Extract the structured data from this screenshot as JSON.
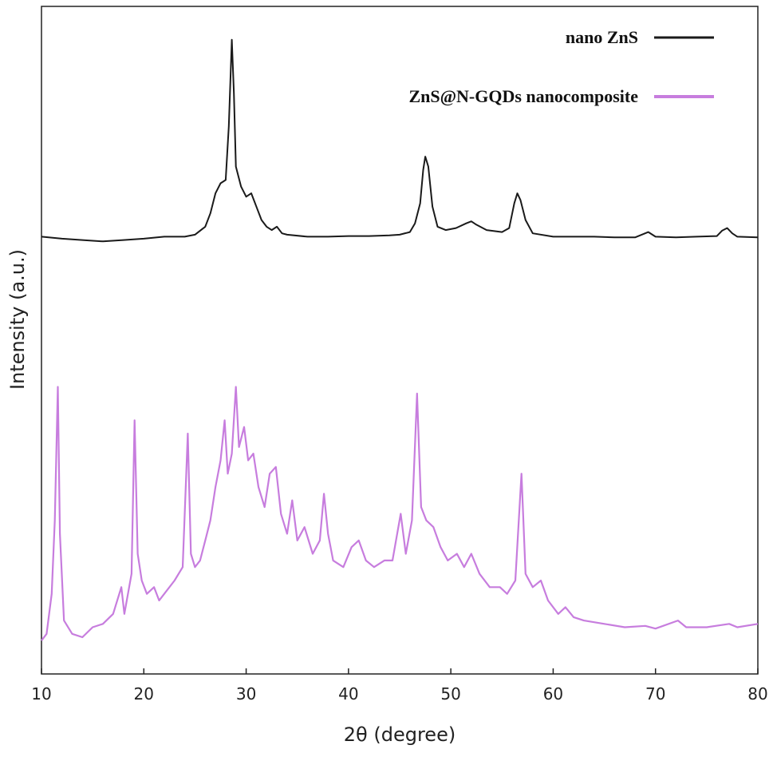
{
  "chart_data": {
    "type": "line",
    "title": "",
    "xlabel": "2θ (degree)",
    "ylabel": "Intensity (a.u.)",
    "xlim": [
      10,
      80
    ],
    "xticks": [
      10,
      20,
      30,
      40,
      50,
      60,
      70,
      80
    ],
    "grid": false,
    "legend_position": "top-right",
    "series": [
      {
        "name": "nano ZnS",
        "color": "#1a1a1a",
        "points": [
          [
            10,
            0.655
          ],
          [
            12,
            0.652
          ],
          [
            14,
            0.65
          ],
          [
            16,
            0.648
          ],
          [
            18,
            0.65
          ],
          [
            20,
            0.652
          ],
          [
            22,
            0.655
          ],
          [
            24,
            0.655
          ],
          [
            25,
            0.658
          ],
          [
            26,
            0.67
          ],
          [
            26.5,
            0.69
          ],
          [
            27,
            0.72
          ],
          [
            27.5,
            0.735
          ],
          [
            28,
            0.74
          ],
          [
            28.3,
            0.82
          ],
          [
            28.6,
            0.95
          ],
          [
            28.8,
            0.87
          ],
          [
            29.0,
            0.76
          ],
          [
            29.5,
            0.73
          ],
          [
            30,
            0.715
          ],
          [
            30.5,
            0.72
          ],
          [
            31,
            0.7
          ],
          [
            31.5,
            0.68
          ],
          [
            32,
            0.67
          ],
          [
            32.5,
            0.665
          ],
          [
            33,
            0.67
          ],
          [
            33.5,
            0.66
          ],
          [
            34,
            0.658
          ],
          [
            36,
            0.655
          ],
          [
            38,
            0.655
          ],
          [
            40,
            0.656
          ],
          [
            42,
            0.656
          ],
          [
            44,
            0.657
          ],
          [
            45,
            0.658
          ],
          [
            46,
            0.662
          ],
          [
            46.5,
            0.675
          ],
          [
            47,
            0.705
          ],
          [
            47.3,
            0.755
          ],
          [
            47.5,
            0.775
          ],
          [
            47.8,
            0.76
          ],
          [
            48.2,
            0.7
          ],
          [
            48.7,
            0.67
          ],
          [
            49.5,
            0.665
          ],
          [
            50.5,
            0.668
          ],
          [
            51.5,
            0.675
          ],
          [
            52,
            0.678
          ],
          [
            52.5,
            0.673
          ],
          [
            53.5,
            0.665
          ],
          [
            55,
            0.662
          ],
          [
            55.7,
            0.668
          ],
          [
            56.2,
            0.705
          ],
          [
            56.5,
            0.72
          ],
          [
            56.8,
            0.71
          ],
          [
            57.3,
            0.68
          ],
          [
            58,
            0.66
          ],
          [
            60,
            0.655
          ],
          [
            62,
            0.655
          ],
          [
            64,
            0.655
          ],
          [
            66,
            0.654
          ],
          [
            68,
            0.654
          ],
          [
            69.3,
            0.662
          ],
          [
            70,
            0.655
          ],
          [
            72,
            0.654
          ],
          [
            74,
            0.655
          ],
          [
            76,
            0.656
          ],
          [
            76.5,
            0.664
          ],
          [
            77,
            0.668
          ],
          [
            77.5,
            0.66
          ],
          [
            78,
            0.655
          ],
          [
            80,
            0.654
          ]
        ]
      },
      {
        "name": "ZnS@N-GQDs nanocomposite",
        "color": "#c77dde",
        "points": [
          [
            10,
            0.05
          ],
          [
            10.5,
            0.06
          ],
          [
            11,
            0.12
          ],
          [
            11.3,
            0.23
          ],
          [
            11.6,
            0.43
          ],
          [
            11.8,
            0.21
          ],
          [
            12.2,
            0.08
          ],
          [
            13,
            0.06
          ],
          [
            14,
            0.055
          ],
          [
            15,
            0.07
          ],
          [
            16,
            0.075
          ],
          [
            17,
            0.09
          ],
          [
            17.8,
            0.13
          ],
          [
            18.1,
            0.09
          ],
          [
            18.8,
            0.15
          ],
          [
            19.1,
            0.38
          ],
          [
            19.4,
            0.18
          ],
          [
            19.8,
            0.14
          ],
          [
            20.3,
            0.12
          ],
          [
            21,
            0.13
          ],
          [
            21.5,
            0.11
          ],
          [
            22,
            0.12
          ],
          [
            23,
            0.14
          ],
          [
            23.8,
            0.16
          ],
          [
            24.3,
            0.36
          ],
          [
            24.6,
            0.18
          ],
          [
            25,
            0.16
          ],
          [
            25.5,
            0.17
          ],
          [
            26,
            0.2
          ],
          [
            26.5,
            0.23
          ],
          [
            27,
            0.28
          ],
          [
            27.5,
            0.32
          ],
          [
            27.9,
            0.38
          ],
          [
            28.2,
            0.3
          ],
          [
            28.6,
            0.33
          ],
          [
            29.0,
            0.43
          ],
          [
            29.3,
            0.34
          ],
          [
            29.8,
            0.37
          ],
          [
            30.2,
            0.32
          ],
          [
            30.7,
            0.33
          ],
          [
            31.2,
            0.28
          ],
          [
            31.8,
            0.25
          ],
          [
            32.3,
            0.3
          ],
          [
            32.9,
            0.31
          ],
          [
            33.4,
            0.24
          ],
          [
            34,
            0.21
          ],
          [
            34.5,
            0.26
          ],
          [
            35,
            0.2
          ],
          [
            35.7,
            0.22
          ],
          [
            36.5,
            0.18
          ],
          [
            37.2,
            0.2
          ],
          [
            37.6,
            0.27
          ],
          [
            38.0,
            0.21
          ],
          [
            38.5,
            0.17
          ],
          [
            39.5,
            0.16
          ],
          [
            40.3,
            0.19
          ],
          [
            41,
            0.2
          ],
          [
            41.7,
            0.17
          ],
          [
            42.5,
            0.16
          ],
          [
            43.5,
            0.17
          ],
          [
            44.3,
            0.17
          ],
          [
            45.1,
            0.24
          ],
          [
            45.6,
            0.18
          ],
          [
            46.2,
            0.23
          ],
          [
            46.7,
            0.42
          ],
          [
            47.1,
            0.25
          ],
          [
            47.6,
            0.23
          ],
          [
            48.3,
            0.22
          ],
          [
            49,
            0.19
          ],
          [
            49.7,
            0.17
          ],
          [
            50.6,
            0.18
          ],
          [
            51.3,
            0.16
          ],
          [
            52.0,
            0.18
          ],
          [
            52.8,
            0.15
          ],
          [
            53.8,
            0.13
          ],
          [
            54.8,
            0.13
          ],
          [
            55.5,
            0.12
          ],
          [
            56.3,
            0.14
          ],
          [
            56.9,
            0.3
          ],
          [
            57.3,
            0.15
          ],
          [
            58,
            0.13
          ],
          [
            58.8,
            0.14
          ],
          [
            59.5,
            0.11
          ],
          [
            60.5,
            0.09
          ],
          [
            61.2,
            0.1
          ],
          [
            62,
            0.085
          ],
          [
            63,
            0.08
          ],
          [
            65,
            0.075
          ],
          [
            67,
            0.07
          ],
          [
            69,
            0.072
          ],
          [
            70,
            0.068
          ],
          [
            72.2,
            0.08
          ],
          [
            73,
            0.07
          ],
          [
            75,
            0.07
          ],
          [
            77.2,
            0.075
          ],
          [
            78,
            0.07
          ],
          [
            80,
            0.075
          ]
        ]
      }
    ]
  }
}
